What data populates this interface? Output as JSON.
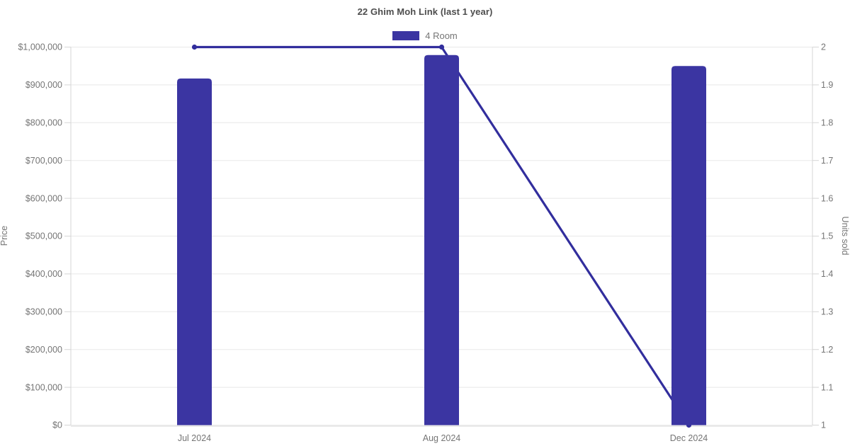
{
  "chart_data": {
    "type": "bar",
    "title": "22 Ghim Moh Link (last 1 year)",
    "legend": [
      {
        "label": "4 Room",
        "color": "#3b35a2"
      }
    ],
    "legend_position": "top",
    "grid": true,
    "categories": [
      "Jul 2024",
      "Aug 2024",
      "Dec 2024"
    ],
    "series": [
      {
        "name": "4 Room resale price",
        "type": "bar",
        "axis": "left",
        "color": "#3b35a2",
        "values": [
          917000,
          979000,
          950000
        ]
      },
      {
        "name": "4 Room units sold",
        "type": "line",
        "axis": "right",
        "color": "#322e9d",
        "values": [
          2,
          2,
          1
        ]
      }
    ],
    "y_left": {
      "label": "Price",
      "min": 0,
      "max": 1000000,
      "tick_step": 100000,
      "ticks": [
        "$0",
        "$100,000",
        "$200,000",
        "$300,000",
        "$400,000",
        "$500,000",
        "$600,000",
        "$700,000",
        "$800,000",
        "$900,000",
        "$1,000,000"
      ]
    },
    "y_right": {
      "label": "Units sold",
      "min": 1,
      "max": 2,
      "tick_step": 0.1,
      "ticks": [
        "1",
        "1.1",
        "1.2",
        "1.3",
        "1.4",
        "1.5",
        "1.6",
        "1.7",
        "1.8",
        "1.9",
        "2"
      ]
    },
    "style": {
      "bar_color": "#3b35a2",
      "line_color": "#322e9d",
      "grid_color": "#e8e8e8",
      "axis_line_color": "#d6d6d6",
      "tick_text_color": "#757575",
      "axis_title_color": "#757575",
      "title_color": "#4d4d4d",
      "background": "#ffffff"
    }
  }
}
